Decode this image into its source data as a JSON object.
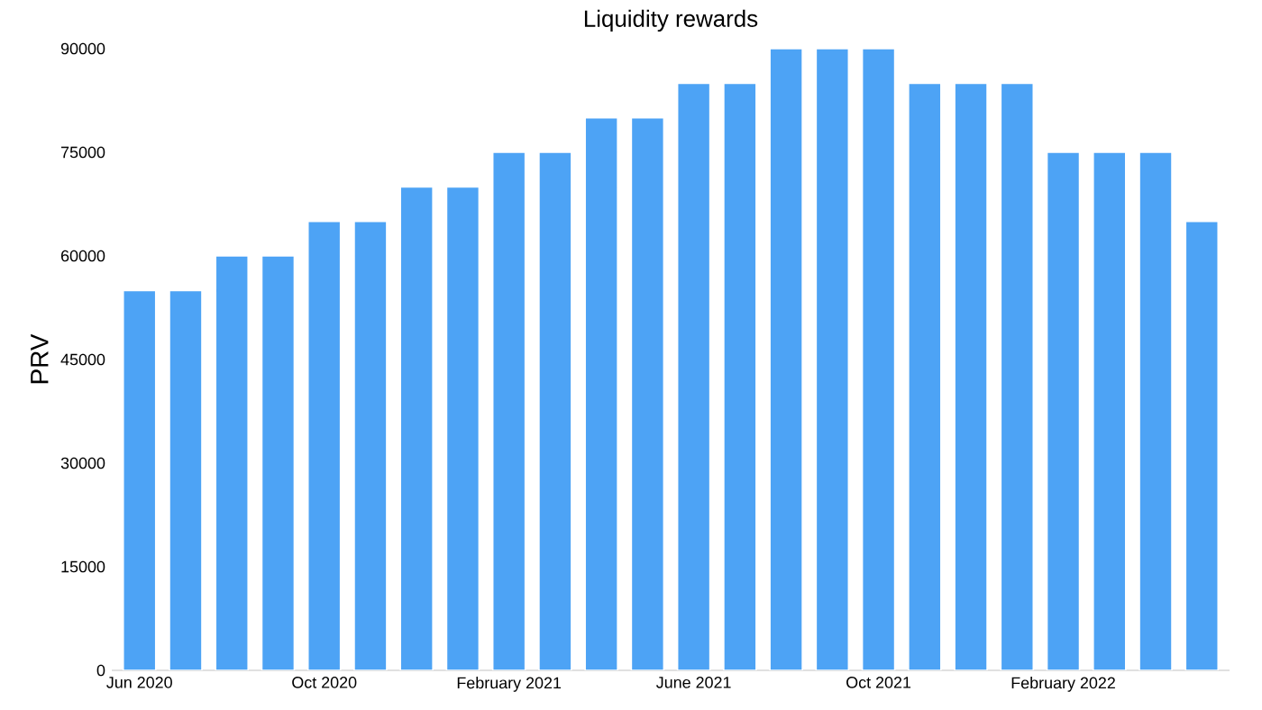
{
  "chart_data": {
    "type": "bar",
    "title": "Liquidity rewards",
    "ylabel": "PRV",
    "categories": [
      "Jun 2020",
      null,
      null,
      null,
      "Oct 2020",
      null,
      null,
      null,
      "February 2021",
      null,
      null,
      null,
      "June 2021",
      null,
      null,
      null,
      "Oct 2021",
      null,
      null,
      null,
      "February 2022",
      null,
      null,
      null
    ],
    "values": [
      55000,
      55000,
      60000,
      60000,
      65000,
      65000,
      70000,
      70000,
      75000,
      75000,
      80000,
      80000,
      85000,
      85000,
      90000,
      90000,
      90000,
      85000,
      85000,
      85000,
      75000,
      75000,
      75000,
      65000
    ],
    "color": "#4da3f5",
    "ylim": [
      0,
      90000
    ],
    "yticks": [
      0,
      15000,
      30000,
      45000,
      60000,
      75000,
      90000
    ],
    "grid": false
  }
}
